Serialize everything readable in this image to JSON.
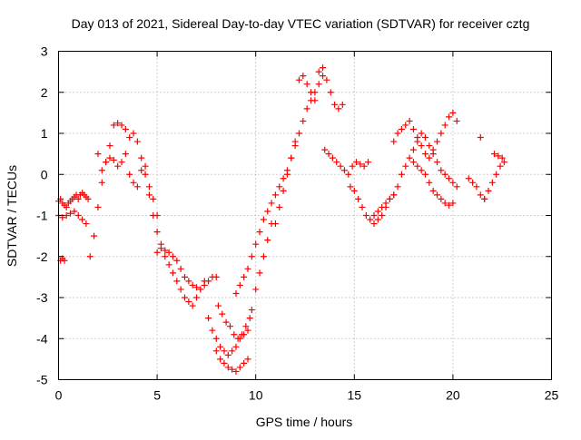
{
  "chart_data": {
    "type": "scatter",
    "title": "Day 013 of 2021, Sidereal Day-to-day VTEC variation (SDTVAR) for receiver cztg",
    "xlabel": "GPS time / hours",
    "ylabel": "SDTVAR / TECUs",
    "xlim": [
      0,
      25
    ],
    "ylim": [
      -5,
      3
    ],
    "xticks": [
      0,
      5,
      10,
      15,
      20,
      25
    ],
    "yticks": [
      -5,
      -4,
      -3,
      -2,
      -1,
      0,
      1,
      2,
      3
    ],
    "xtick_labels": [
      "0",
      "5",
      "10",
      "15",
      "20",
      "25"
    ],
    "ytick_labels": [
      "-5",
      "-4",
      "-3",
      "-2",
      "-1",
      "0",
      "1",
      "2",
      "3"
    ],
    "grid": true,
    "marker": "plus",
    "color": "#ff0000",
    "series": [
      {
        "name": "SDTVAR",
        "x": [
          0.0,
          0.1,
          0.2,
          0.3,
          0.4,
          0.5,
          0.6,
          0.7,
          0.8,
          0.9,
          1.0,
          1.1,
          1.2,
          1.3,
          1.4,
          1.5,
          0.0,
          0.2,
          0.4,
          0.6,
          0.8,
          1.0,
          1.2,
          1.4,
          0.1,
          0.2,
          0.3,
          1.6,
          1.8,
          2.0,
          2.2,
          2.4,
          2.6,
          2.8,
          3.0,
          3.2,
          3.4,
          2.0,
          2.2,
          2.4,
          2.6,
          2.8,
          3.0,
          3.2,
          3.4,
          3.6,
          3.8,
          4.0,
          4.2,
          4.4,
          4.6,
          4.8,
          5.0,
          3.6,
          3.8,
          4.0,
          4.2,
          4.4,
          4.6,
          4.8,
          5.0,
          5.2,
          5.4,
          5.6,
          5.8,
          6.0,
          6.2,
          6.4,
          6.6,
          6.8,
          7.0,
          7.2,
          7.4,
          5.0,
          5.2,
          5.4,
          5.6,
          5.8,
          6.0,
          6.2,
          6.4,
          6.6,
          6.8,
          7.0,
          7.2,
          7.4,
          7.6,
          7.8,
          8.0,
          7.6,
          7.8,
          8.0,
          8.2,
          8.4,
          8.6,
          8.8,
          9.0,
          9.2,
          9.4,
          9.6,
          8.0,
          8.2,
          8.4,
          8.6,
          8.8,
          9.0,
          9.2,
          9.4,
          9.6,
          8.1,
          8.3,
          8.5,
          8.7,
          8.9,
          9.1,
          9.3,
          9.5,
          9.7,
          9.8,
          10.0,
          10.2,
          10.4,
          10.6,
          10.8,
          9.0,
          9.2,
          9.4,
          9.6,
          9.8,
          10.0,
          10.2,
          10.4,
          10.6,
          10.8,
          11.0,
          11.2,
          11.4,
          11.6,
          11.8,
          12.0,
          11.0,
          11.2,
          11.4,
          11.6,
          11.8,
          12.0,
          12.2,
          12.4,
          12.6,
          12.8,
          13.0,
          13.2,
          13.4,
          12.2,
          12.4,
          12.6,
          12.8,
          13.0,
          13.2,
          13.4,
          13.6,
          13.8,
          14.0,
          14.2,
          14.4,
          13.5,
          13.7,
          13.9,
          14.1,
          14.3,
          14.5,
          14.7,
          14.9,
          15.1,
          15.3,
          15.5,
          15.7,
          16.0,
          16.2,
          16.4,
          16.6,
          16.8,
          17.0,
          14.8,
          15.0,
          15.2,
          15.4,
          15.6,
          15.8,
          16.0,
          16.2,
          16.4,
          16.6,
          16.8,
          17.0,
          17.2,
          17.4,
          17.6,
          17.8,
          18.0,
          18.2,
          18.4,
          18.6,
          18.8,
          19.0,
          19.2,
          19.4,
          19.6,
          19.8,
          20.0,
          20.2,
          17.0,
          17.2,
          17.4,
          17.6,
          17.8,
          18.0,
          18.2,
          18.4,
          18.6,
          18.8,
          19.0,
          19.2,
          19.4,
          19.6,
          19.8,
          20.0,
          20.2,
          18.0,
          18.2,
          18.4,
          18.6,
          18.8,
          19.0,
          19.2,
          19.4,
          19.6,
          19.8,
          20.0,
          21.0,
          21.2,
          21.4,
          21.6,
          21.8,
          22.0,
          22.2,
          22.4,
          22.6,
          20.8,
          21.4,
          21.6,
          22.1,
          22.3,
          22.5
        ],
        "y": [
          -0.65,
          -0.6,
          -0.7,
          -0.75,
          -0.8,
          -0.7,
          -0.65,
          -0.6,
          -0.55,
          -0.5,
          -0.6,
          -0.5,
          -0.45,
          -0.5,
          -0.55,
          -0.6,
          -1.0,
          -1.05,
          -1.0,
          -0.95,
          -0.9,
          -1.0,
          -1.1,
          -1.2,
          -2.1,
          -2.05,
          -2.1,
          -2.0,
          -1.5,
          -0.8,
          -0.2,
          0.3,
          0.7,
          1.2,
          1.25,
          1.2,
          1.1,
          0.5,
          0.1,
          0.3,
          0.4,
          0.35,
          0.2,
          0.3,
          0.5,
          0.9,
          1.0,
          0.8,
          0.4,
          0.0,
          -0.3,
          -0.6,
          -1.0,
          0.0,
          -0.2,
          -0.3,
          0.1,
          0.2,
          -0.5,
          -1.0,
          -1.4,
          -1.7,
          -2.0,
          -2.2,
          -2.4,
          -2.6,
          -2.8,
          -3.0,
          -3.1,
          -3.2,
          -3.0,
          -2.8,
          -2.6,
          -1.9,
          -1.8,
          -1.85,
          -1.9,
          -2.0,
          -2.1,
          -2.3,
          -2.5,
          -2.6,
          -2.7,
          -2.75,
          -2.8,
          -2.7,
          -2.6,
          -2.5,
          -2.5,
          -3.5,
          -3.8,
          -4.0,
          -4.2,
          -4.3,
          -4.4,
          -4.3,
          -4.2,
          -4.0,
          -3.9,
          -3.8,
          -4.3,
          -4.5,
          -4.6,
          -4.7,
          -4.75,
          -4.8,
          -4.7,
          -4.6,
          -4.5,
          -3.2,
          -3.4,
          -3.6,
          -3.7,
          -3.9,
          -4.0,
          -3.9,
          -3.7,
          -3.5,
          -3.3,
          -2.8,
          -2.4,
          -2.0,
          -1.6,
          -1.2,
          -2.9,
          -2.7,
          -2.5,
          -2.3,
          -2.0,
          -1.7,
          -1.4,
          -1.1,
          -0.9,
          -0.7,
          -0.5,
          -0.3,
          -0.1,
          0.1,
          0.4,
          0.8,
          -1.2,
          -0.8,
          -0.4,
          0.0,
          0.4,
          0.7,
          1.0,
          1.3,
          1.6,
          1.8,
          2.0,
          2.2,
          2.4,
          2.3,
          2.4,
          2.2,
          2.0,
          1.8,
          2.5,
          2.6,
          2.3,
          2.0,
          1.7,
          1.6,
          1.7,
          0.6,
          0.5,
          0.4,
          0.3,
          0.2,
          0.1,
          0.0,
          0.2,
          0.3,
          0.25,
          0.2,
          0.3,
          -1.0,
          -0.9,
          -0.8,
          -0.7,
          -0.6,
          -0.5,
          -0.3,
          -0.4,
          -0.6,
          -0.8,
          -1.0,
          -1.1,
          -1.2,
          -1.1,
          -1.0,
          -0.8,
          -0.6,
          -0.5,
          -0.3,
          0.0,
          0.2,
          0.4,
          0.6,
          0.8,
          1.0,
          0.9,
          0.7,
          0.5,
          0.3,
          0.1,
          0.0,
          -0.1,
          -0.2,
          -0.3,
          0.8,
          1.0,
          1.1,
          1.2,
          1.3,
          1.1,
          0.9,
          0.7,
          0.5,
          0.4,
          0.6,
          0.8,
          1.0,
          1.2,
          1.4,
          1.5,
          1.3,
          0.3,
          0.2,
          0.1,
          0.0,
          -0.2,
          -0.4,
          -0.5,
          -0.6,
          -0.7,
          -0.75,
          -0.7,
          -0.2,
          -0.3,
          -0.5,
          -0.6,
          -0.4,
          -0.2,
          0.0,
          0.2,
          0.3,
          -0.1,
          0.9,
          -0.6,
          0.5,
          0.45,
          0.4
        ]
      }
    ]
  }
}
